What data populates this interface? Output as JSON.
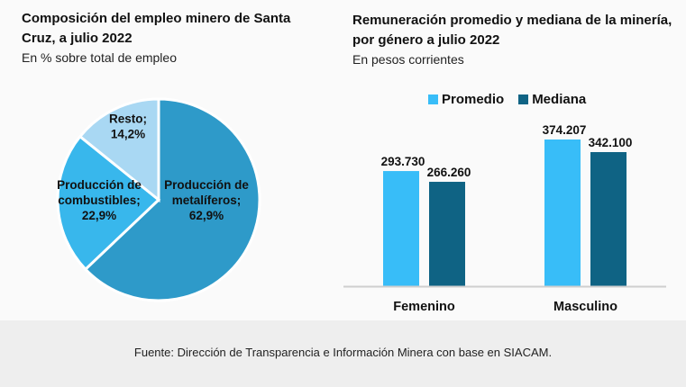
{
  "left_chart": {
    "title": "Composición del empleo minero de Santa Cruz, a julio 2022",
    "subtitle": "En % sobre total de empleo"
  },
  "right_chart": {
    "title": "Remuneración promedio y mediana de la minería, por género a julio 2022",
    "subtitle": "En pesos corrientes"
  },
  "footer": {
    "source": "Fuente: Dirección de Transparencia e Información Minera con base en SIACAM."
  },
  "chart_data": [
    {
      "type": "pie",
      "title": "Composición del empleo minero de Santa Cruz, a julio 2022",
      "subtitle": "En % sobre total de empleo",
      "slices": [
        {
          "label_lines": [
            "Producción de",
            "metalíferos;",
            "62,9%"
          ],
          "name": "Producción de metalíferos",
          "value": 62.9,
          "color": "#2e9ac9"
        },
        {
          "label_lines": [
            "Producción de",
            "combustibles;",
            "22,9%"
          ],
          "name": "Producción de combustibles",
          "value": 22.9,
          "color": "#38b7ec"
        },
        {
          "label_lines": [
            "Resto;",
            "14,2%"
          ],
          "name": "Resto",
          "value": 14.2,
          "color": "#a9d8f3"
        }
      ]
    },
    {
      "type": "bar",
      "title": "Remuneración promedio y mediana de la minería, por género a julio 2022",
      "subtitle": "En pesos corrientes",
      "categories": [
        "Femenino",
        "Masculino"
      ],
      "series": [
        {
          "name": "Promedio",
          "values": [
            293730,
            374207
          ],
          "labels": [
            "293.730",
            "374.207"
          ],
          "color": "#38bdf8"
        },
        {
          "name": "Mediana",
          "values": [
            266260,
            342100
          ],
          "labels": [
            "266.260",
            "342.100"
          ],
          "color": "#0f6384"
        }
      ],
      "ylim": [
        0,
        374207
      ],
      "grid": false,
      "legend": "top"
    }
  ]
}
